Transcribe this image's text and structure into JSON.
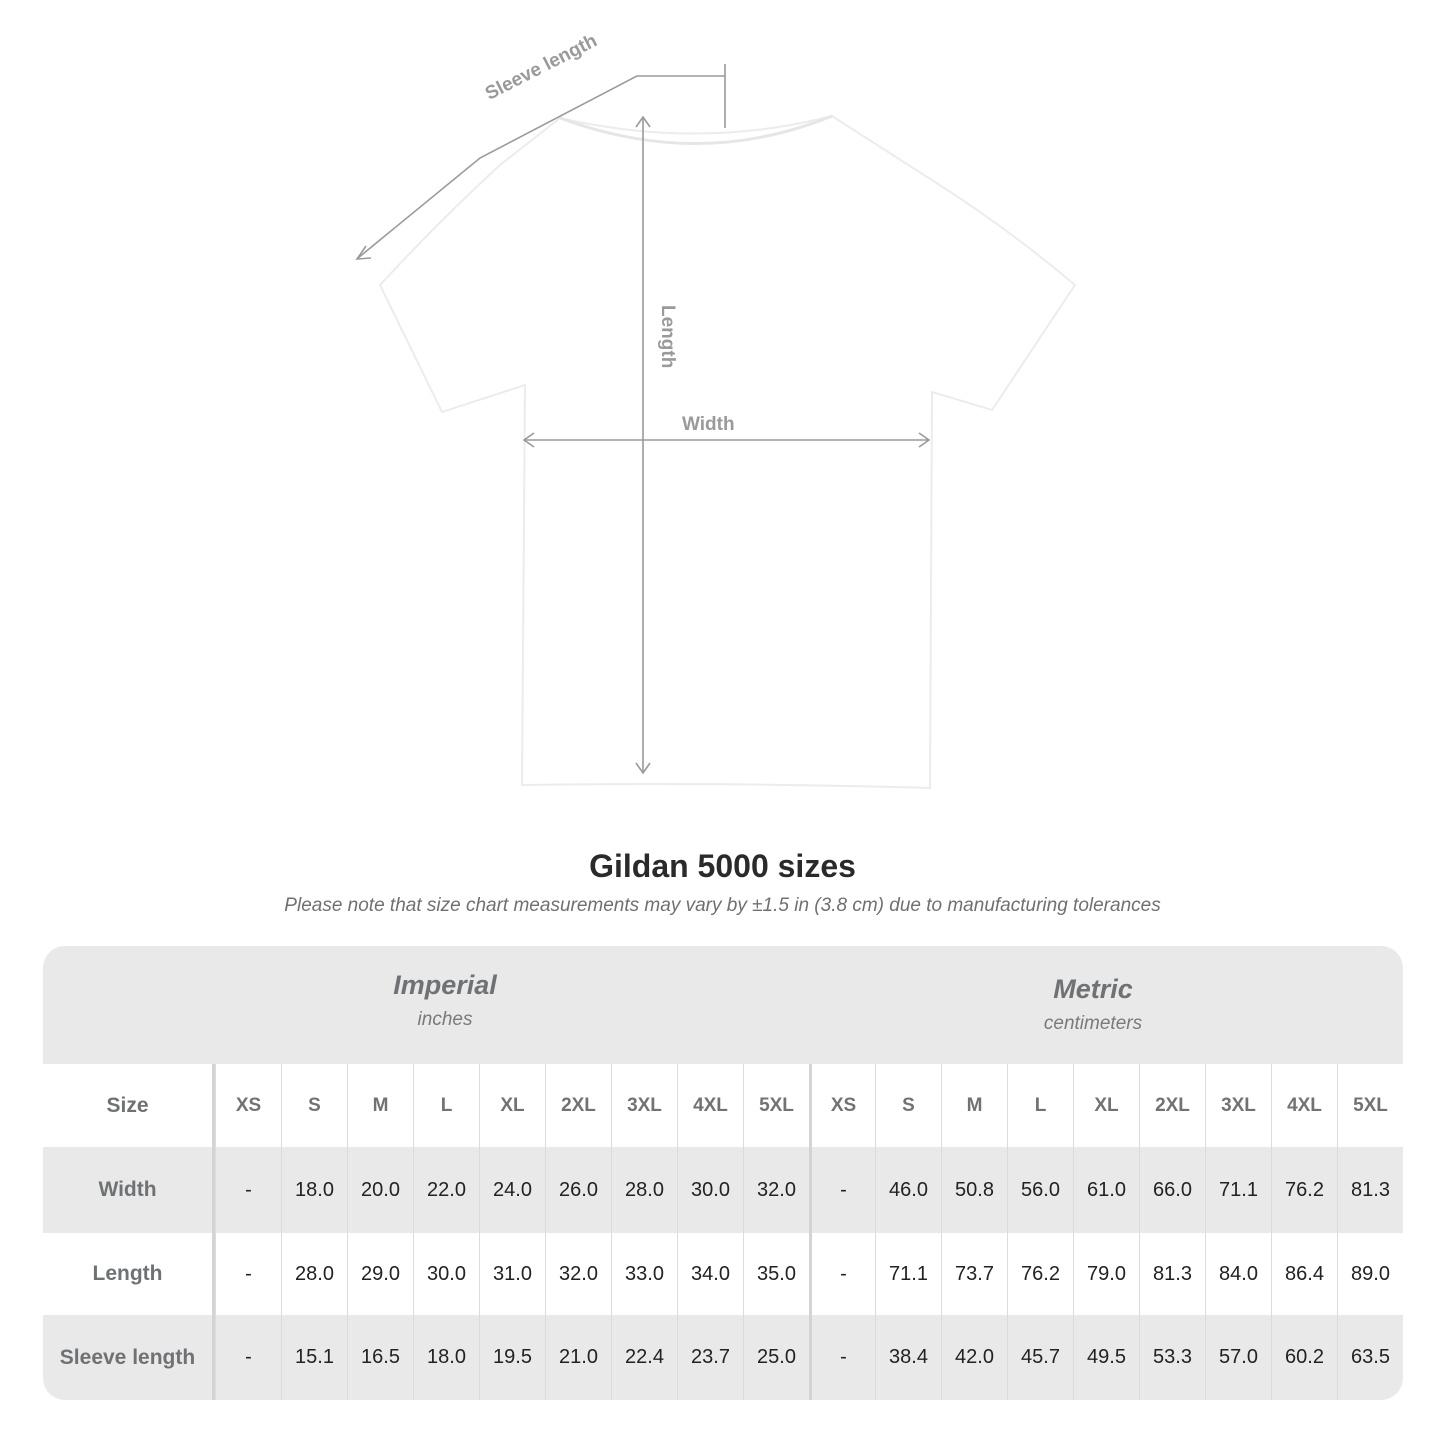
{
  "diagram": {
    "labels": {
      "sleeve": "Sleeve length",
      "length": "Length",
      "width": "Width"
    },
    "line_color": "#9a9a9a"
  },
  "title": "Gildan 5000 sizes",
  "note": "Please note that size chart measurements may vary by ±1.5 in (3.8 cm) due to manufacturing tolerances",
  "table": {
    "imperial": {
      "name": "Imperial",
      "unit": "inches"
    },
    "metric": {
      "name": "Metric",
      "unit": "centimeters"
    },
    "size_label": "Size",
    "sizes": [
      "XS",
      "S",
      "M",
      "L",
      "XL",
      "2XL",
      "3XL",
      "4XL",
      "5XL"
    ],
    "rows": [
      {
        "label": "Width",
        "imperial": [
          "-",
          "18.0",
          "20.0",
          "22.0",
          "24.0",
          "26.0",
          "28.0",
          "30.0",
          "32.0"
        ],
        "metric": [
          "-",
          "46.0",
          "50.8",
          "56.0",
          "61.0",
          "66.0",
          "71.1",
          "76.2",
          "81.3"
        ]
      },
      {
        "label": "Length",
        "imperial": [
          "-",
          "28.0",
          "29.0",
          "30.0",
          "31.0",
          "32.0",
          "33.0",
          "34.0",
          "35.0"
        ],
        "metric": [
          "-",
          "71.1",
          "73.7",
          "76.2",
          "79.0",
          "81.3",
          "84.0",
          "86.4",
          "89.0"
        ]
      },
      {
        "label": "Sleeve length",
        "imperial": [
          "-",
          "15.1",
          "16.5",
          "18.0",
          "19.5",
          "21.0",
          "22.4",
          "23.7",
          "25.0"
        ],
        "metric": [
          "-",
          "38.4",
          "42.0",
          "45.7",
          "49.5",
          "53.3",
          "57.0",
          "60.2",
          "63.5"
        ]
      }
    ],
    "colors": {
      "header_bg": "#e9e9ea",
      "label_text": "#6f7274"
    }
  }
}
